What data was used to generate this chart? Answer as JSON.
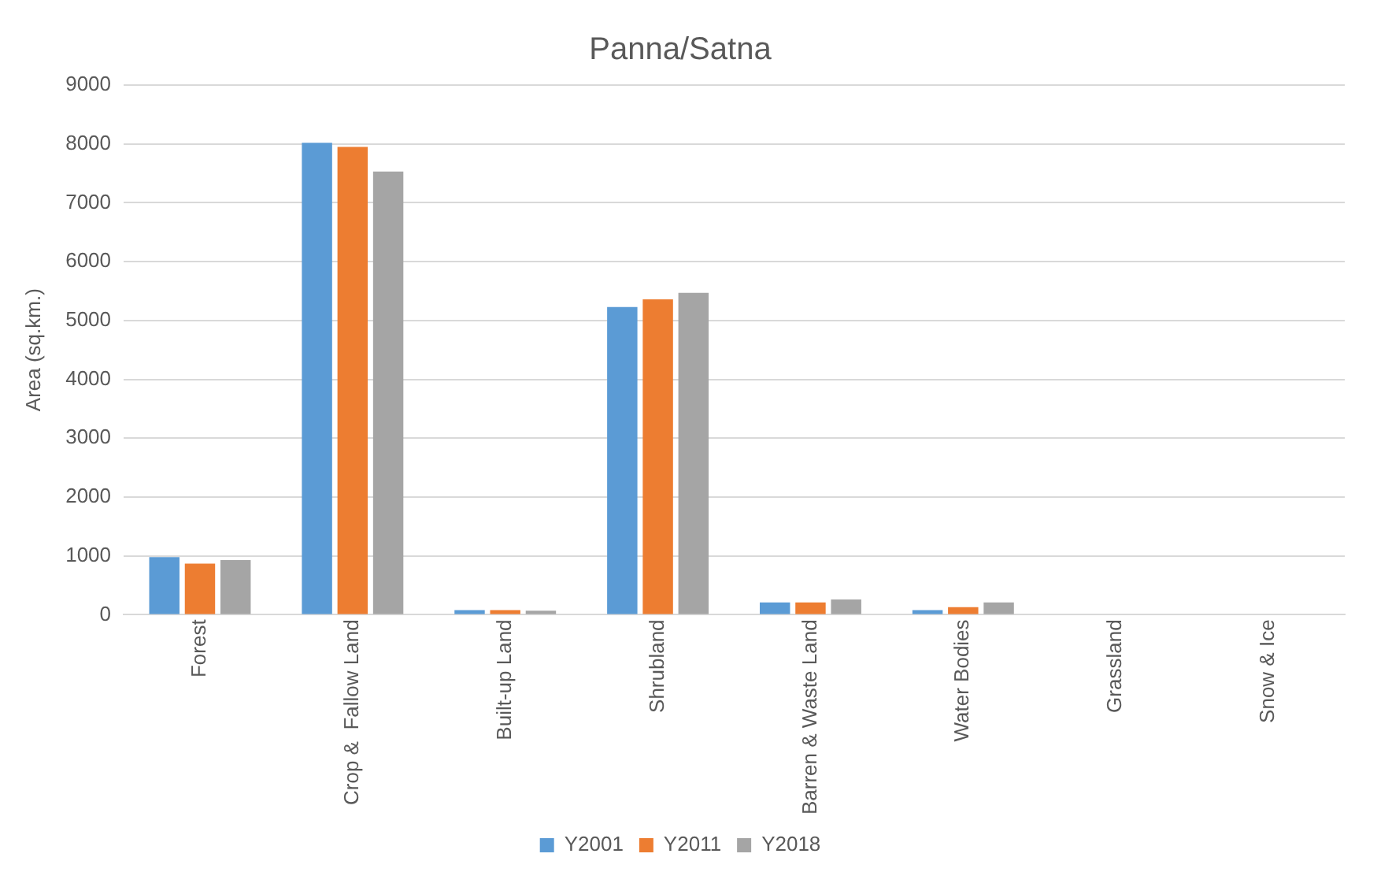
{
  "chart_data": {
    "type": "bar",
    "title": "Panna/Satna",
    "ylabel": "Area (sq.km.)",
    "categories": [
      "Forest",
      "Crop &  Fallow Land",
      "Built-up Land",
      "Shrubland",
      "Barren & Waste Land",
      "Water Bodies",
      "Grassland",
      "Snow & Ice"
    ],
    "series": [
      {
        "name": "Y2001",
        "color": "#5b9bd5",
        "values": [
          980,
          8020,
          80,
          5230,
          210,
          80,
          null,
          0
        ]
      },
      {
        "name": "Y2011",
        "color": "#ed7d31",
        "values": [
          870,
          7950,
          80,
          5360,
          210,
          130,
          null,
          0
        ]
      },
      {
        "name": "Y2018",
        "color": "#a5a5a5",
        "values": [
          930,
          7530,
          70,
          5470,
          260,
          210,
          null,
          0
        ]
      }
    ],
    "ylim": [
      0,
      9000
    ],
    "yticks": [
      0,
      1000,
      2000,
      3000,
      4000,
      5000,
      6000,
      7000,
      8000,
      9000
    ],
    "grid": "y",
    "legend": "bottom"
  }
}
